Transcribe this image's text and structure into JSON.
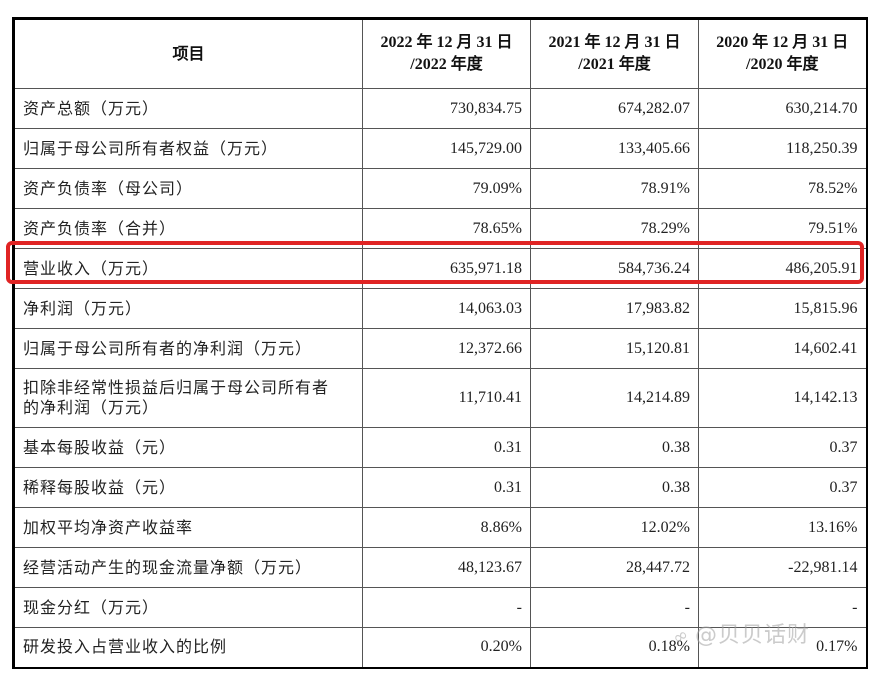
{
  "table": {
    "header": {
      "item": "项目",
      "columns": [
        {
          "line1": "2022 年 12 月 31 日",
          "line2": "/2022 年度"
        },
        {
          "line1": "2021 年 12 月 31 日",
          "line2": "/2021 年度"
        },
        {
          "line1": "2020 年 12 月 31 日",
          "line2": "/2020 年度"
        }
      ]
    },
    "rows": [
      {
        "label": "资产总额（万元）",
        "values": [
          "730,834.75",
          "674,282.07",
          "630,214.70"
        ]
      },
      {
        "label": "归属于母公司所有者权益（万元）",
        "values": [
          "145,729.00",
          "133,405.66",
          "118,250.39"
        ]
      },
      {
        "label": "资产负债率（母公司）",
        "values": [
          "79.09%",
          "78.91%",
          "78.52%"
        ]
      },
      {
        "label": "资产负债率（合并）",
        "values": [
          "78.65%",
          "78.29%",
          "79.51%"
        ]
      },
      {
        "label": "营业收入（万元）",
        "values": [
          "635,971.18",
          "584,736.24",
          "486,205.91"
        ],
        "highlighted": true
      },
      {
        "label": "净利润（万元）",
        "values": [
          "14,063.03",
          "17,983.82",
          "15,815.96"
        ]
      },
      {
        "label": "归属于母公司所有者的净利润（万元）",
        "values": [
          "12,372.66",
          "15,120.81",
          "14,602.41"
        ]
      },
      {
        "label": "扣除非经常性损益后归属于母公司所有者的净利润（万元）",
        "label_line1": "扣除非经常性损益后归属于母公司所有者",
        "label_line2": "的净利润（万元）",
        "values": [
          "11,710.41",
          "14,214.89",
          "14,142.13"
        ]
      },
      {
        "label": "基本每股收益（元）",
        "values": [
          "0.31",
          "0.38",
          "0.37"
        ]
      },
      {
        "label": "稀释每股收益（元）",
        "values": [
          "0.31",
          "0.38",
          "0.37"
        ]
      },
      {
        "label": "加权平均净资产收益率",
        "values": [
          "8.86%",
          "12.02%",
          "13.16%"
        ]
      },
      {
        "label": "经营活动产生的现金流量净额（万元）",
        "values": [
          "48,123.67",
          "28,447.72",
          "-22,981.14"
        ]
      },
      {
        "label": "现金分红（万元）",
        "values": [
          "-",
          "-",
          "-"
        ]
      },
      {
        "label": "研发投入占营业收入的比例",
        "values": [
          "0.20%",
          "0.18%",
          "0.17%"
        ]
      }
    ]
  },
  "highlight": {
    "color": "#e02424",
    "row_label": "营业收入（万元）"
  },
  "watermark": {
    "icon": "weibo-icon",
    "text": "@贝贝话财"
  }
}
